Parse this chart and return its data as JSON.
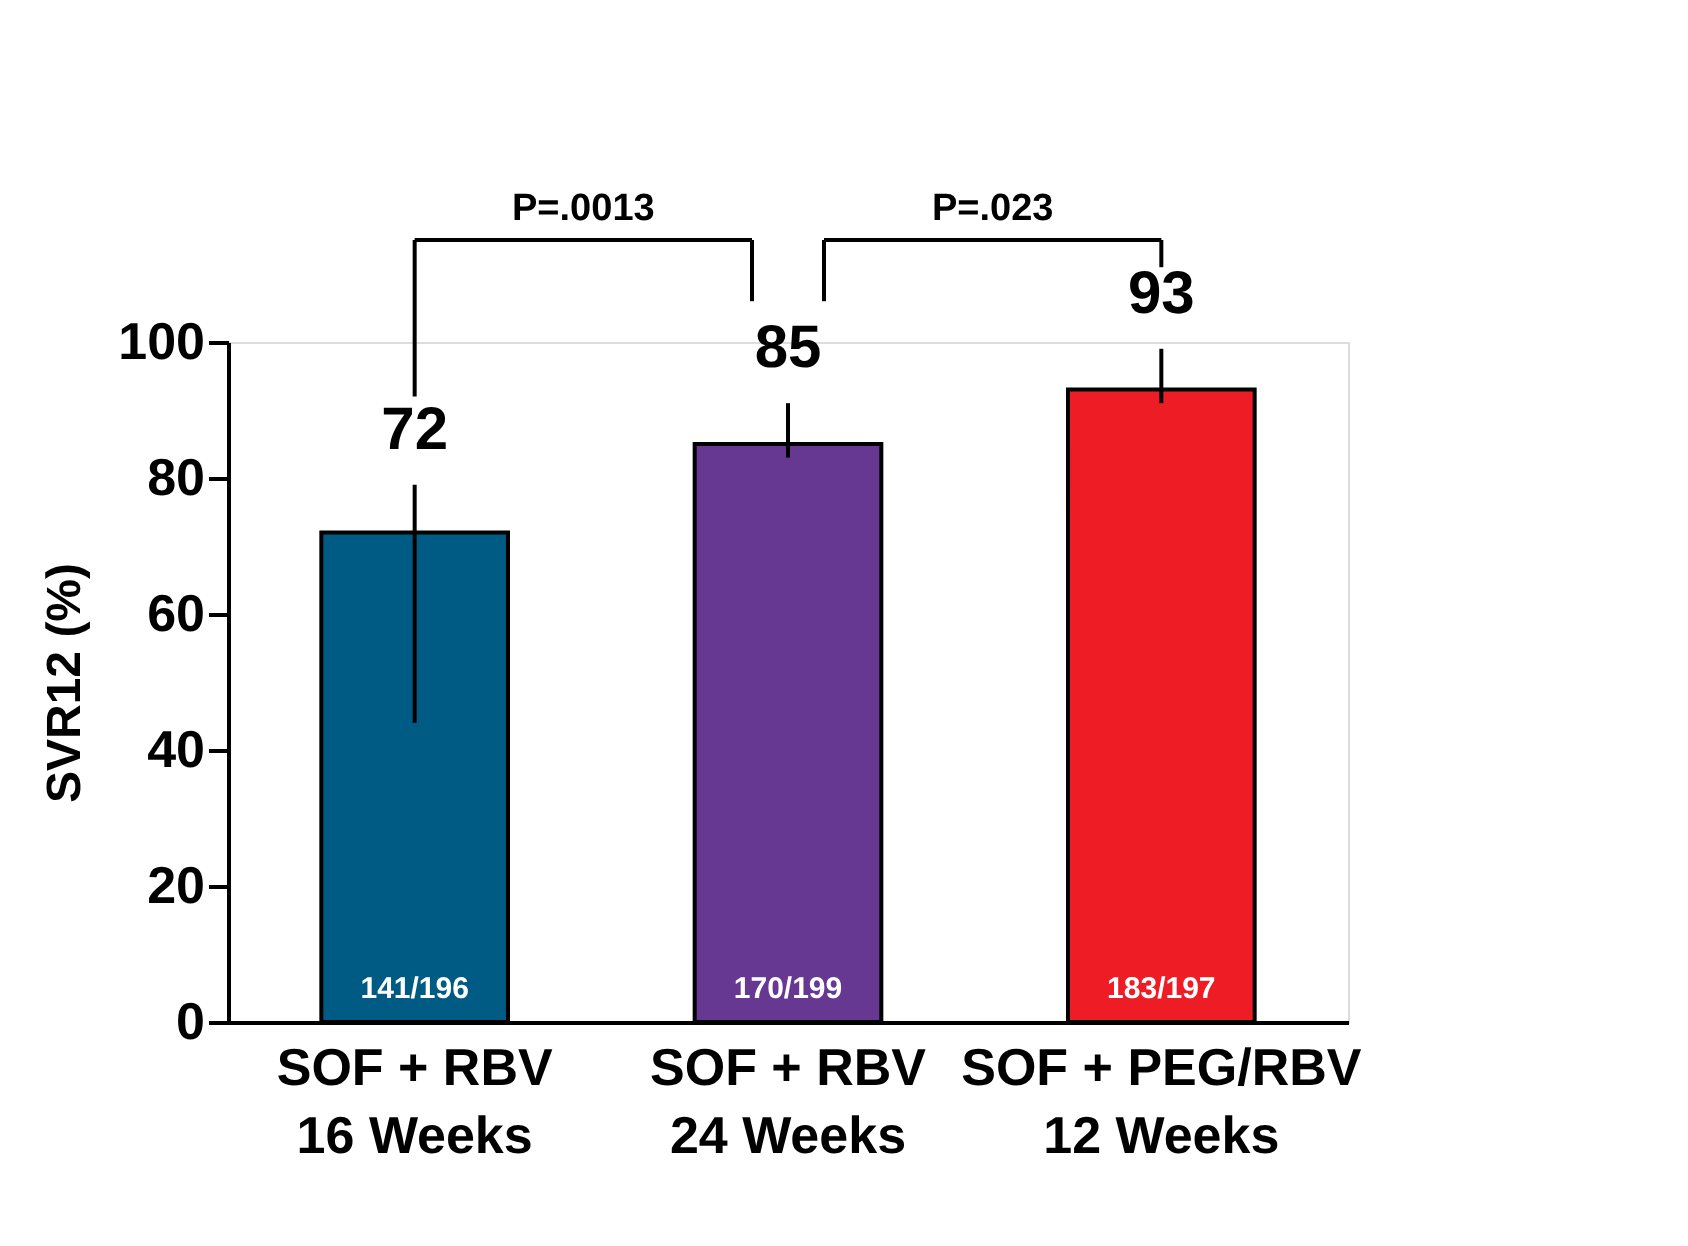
{
  "chart_data": {
    "type": "bar",
    "ylabel": "SVR12 (%)",
    "categories": [
      "SOF + RBV\n16 Weeks",
      "SOF + RBV\n24 Weeks",
      "SOF + PEG/RBV\n12 Weeks"
    ],
    "values": [
      72,
      85,
      93
    ],
    "colors": [
      "#005b84",
      "#673892",
      "#ee1c25"
    ],
    "errors": [
      [
        44,
        79
      ],
      [
        83,
        91
      ],
      [
        91,
        99
      ]
    ],
    "data_labels": true,
    "ylim": [
      0,
      100
    ],
    "yticks": [
      0,
      20,
      40,
      60,
      80,
      100
    ],
    "grid": false,
    "annotations": [
      "P=.0013",
      "P=.023",
      "141/196",
      "170/199",
      "183/197"
    ]
  }
}
